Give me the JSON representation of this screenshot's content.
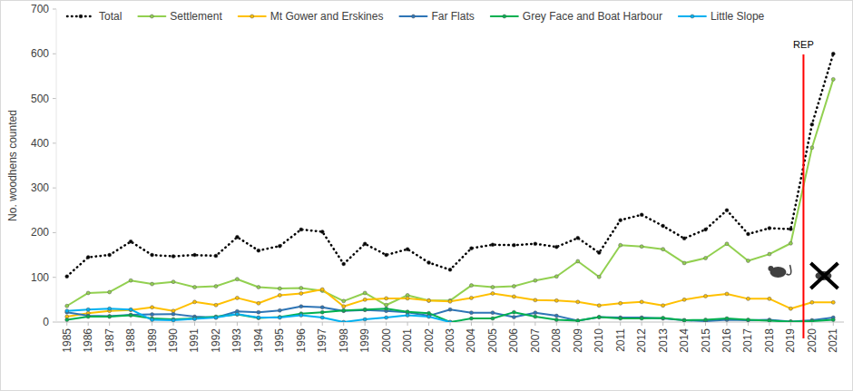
{
  "chart_data": {
    "type": "line",
    "y_label": "No. woodhens counted",
    "x": [
      1985,
      1986,
      1987,
      1988,
      1989,
      1990,
      1991,
      1992,
      1993,
      1994,
      1995,
      1996,
      1997,
      1998,
      1999,
      2000,
      2001,
      2002,
      2003,
      2004,
      2005,
      2006,
      2007,
      2008,
      2009,
      2010,
      2011,
      2012,
      2013,
      2014,
      2015,
      2016,
      2017,
      2018,
      2019,
      2020,
      2021
    ],
    "xlim": [
      1984.5,
      2021.5
    ],
    "xticks": [
      1985,
      1986,
      1987,
      1988,
      1989,
      1990,
      1991,
      1992,
      1993,
      1994,
      1995,
      1996,
      1997,
      1998,
      1999,
      2000,
      2001,
      2002,
      2003,
      2004,
      2005,
      2006,
      2007,
      2008,
      2009,
      2010,
      2011,
      2012,
      2013,
      2014,
      2015,
      2016,
      2017,
      2018,
      2019,
      2020,
      2021
    ],
    "ylim": [
      0,
      700
    ],
    "yticks": [
      0,
      100,
      200,
      300,
      400,
      500,
      600,
      700
    ],
    "grid": false,
    "legend": "top",
    "marker": "circle",
    "annotations": [
      {
        "text": "REP",
        "x": 2019.6
      }
    ],
    "series": [
      {
        "name": "Total",
        "color": "#000000",
        "line_style": "dotted",
        "values": [
          102,
          145,
          150,
          180,
          150,
          147,
          150,
          148,
          190,
          160,
          170,
          207,
          202,
          130,
          175,
          150,
          163,
          133,
          117,
          165,
          173,
          172,
          175,
          168,
          188,
          155,
          228,
          240,
          215,
          187,
          207,
          250,
          197,
          210,
          208,
          442,
          600
        ]
      },
      {
        "name": "Settlement",
        "color": "#92d050",
        "line_style": "solid",
        "values": [
          36,
          65,
          67,
          93,
          85,
          90,
          78,
          80,
          96,
          78,
          75,
          76,
          70,
          47,
          65,
          38,
          60,
          48,
          48,
          82,
          78,
          80,
          93,
          102,
          136,
          101,
          172,
          169,
          163,
          132,
          143,
          175,
          137,
          152,
          176,
          390,
          543
        ]
      },
      {
        "name": "Mt Gower and Erskines",
        "color": "#ffc000",
        "line_style": "solid",
        "values": [
          12,
          20,
          25,
          27,
          33,
          25,
          45,
          38,
          54,
          42,
          60,
          64,
          73,
          35,
          50,
          53,
          53,
          48,
          46,
          54,
          64,
          57,
          49,
          48,
          45,
          37,
          42,
          45,
          37,
          50,
          58,
          63,
          52,
          52,
          30,
          44,
          44
        ]
      },
      {
        "name": "Far Flats",
        "color": "#2e75b6",
        "line_style": "solid",
        "values": [
          22,
          14,
          13,
          16,
          17,
          18,
          12,
          10,
          24,
          22,
          26,
          35,
          33,
          25,
          27,
          25,
          22,
          14,
          28,
          21,
          21,
          11,
          21,
          14,
          3,
          11,
          10,
          10,
          8,
          4,
          2,
          5,
          4,
          5,
          1,
          4,
          10
        ]
      },
      {
        "name": "Grey Face and Boat Harbour",
        "color": "#00b050",
        "line_style": "solid",
        "values": [
          5,
          12,
          12,
          15,
          8,
          6,
          8,
          12,
          17,
          9,
          11,
          19,
          22,
          26,
          28,
          30,
          23,
          20,
          0,
          8,
          8,
          22,
          12,
          5,
          3,
          11,
          8,
          8,
          9,
          4,
          5,
          8,
          5,
          3,
          1,
          2,
          5
        ]
      },
      {
        "name": "Little Slope",
        "color": "#00b0f0",
        "line_style": "solid",
        "values": [
          25,
          28,
          30,
          28,
          5,
          4,
          7,
          10,
          18,
          10,
          10,
          15,
          10,
          0,
          6,
          10,
          15,
          12,
          0,
          null,
          null,
          null,
          null,
          null,
          null,
          null,
          null,
          null,
          null,
          null,
          null,
          null,
          null,
          null,
          null,
          null,
          null
        ]
      }
    ]
  }
}
